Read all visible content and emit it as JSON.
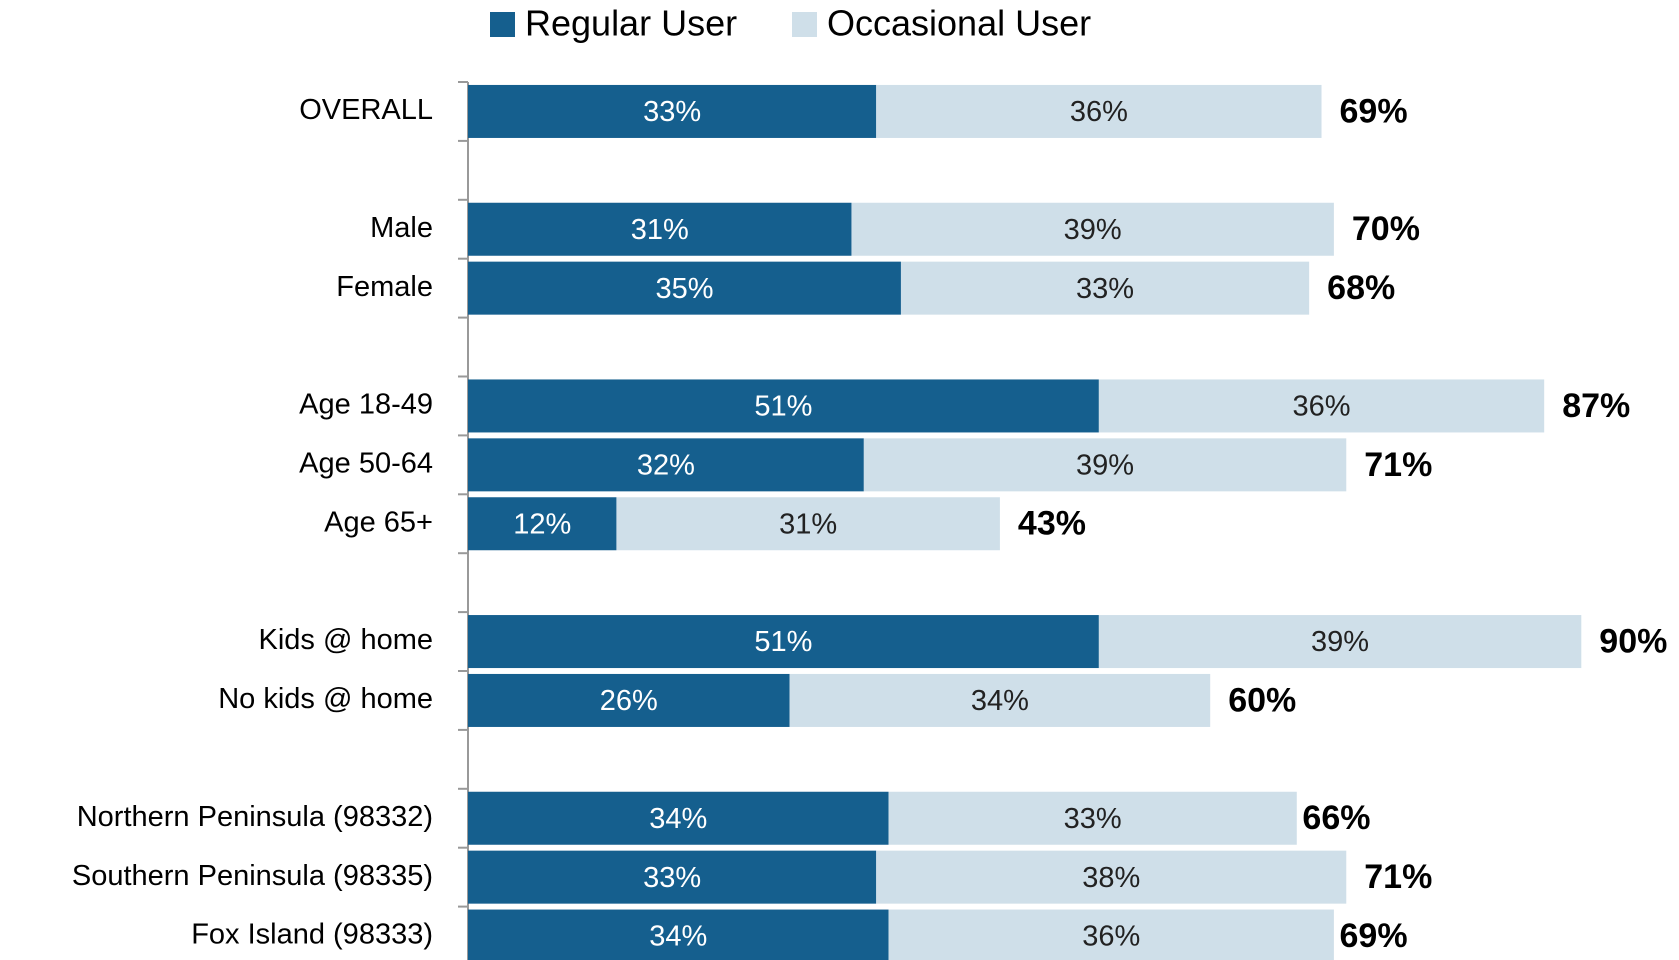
{
  "chart_data": {
    "type": "stacked_bar_horizontal",
    "categories": [
      "OVERALL",
      null,
      "Male",
      "Female",
      null,
      "Age 18-49",
      "Age 50-64",
      "Age 65+",
      null,
      "Kids @ home",
      "No kids @ home",
      null,
      "Northern Peninsula (98332)",
      "Southern Peninsula (98335)",
      "Fox Island  (98333)"
    ],
    "series": [
      {
        "name": "Regular User",
        "color": "#155f8e",
        "values": [
          33,
          null,
          31,
          35,
          null,
          51,
          32,
          12,
          null,
          51,
          26,
          null,
          34,
          33,
          34
        ],
        "value_labels": [
          "33%",
          null,
          "31%",
          "35%",
          null,
          "51%",
          "32%",
          "12%",
          null,
          "51%",
          "26%",
          null,
          "34%",
          "33%",
          "34%"
        ]
      },
      {
        "name": "Occasional User",
        "color": "#cfdfe9",
        "values": [
          36,
          null,
          39,
          33,
          null,
          36,
          39,
          31,
          null,
          39,
          34,
          null,
          33,
          38,
          36
        ],
        "value_labels": [
          "36%",
          null,
          "39%",
          "33%",
          null,
          "36%",
          "39%",
          "31%",
          null,
          "39%",
          "34%",
          null,
          "33%",
          "38%",
          "36%"
        ]
      }
    ],
    "totals": [
      69,
      null,
      70,
      68,
      null,
      87,
      71,
      43,
      null,
      90,
      60,
      null,
      66,
      71,
      69
    ],
    "total_labels": [
      "69%",
      null,
      "70%",
      "68%",
      null,
      "87%",
      "71%",
      "43%",
      null,
      "90%",
      "60%",
      null,
      "66%",
      "71%",
      "69%"
    ],
    "xlim": [
      0,
      100
    ],
    "legend": "top"
  }
}
